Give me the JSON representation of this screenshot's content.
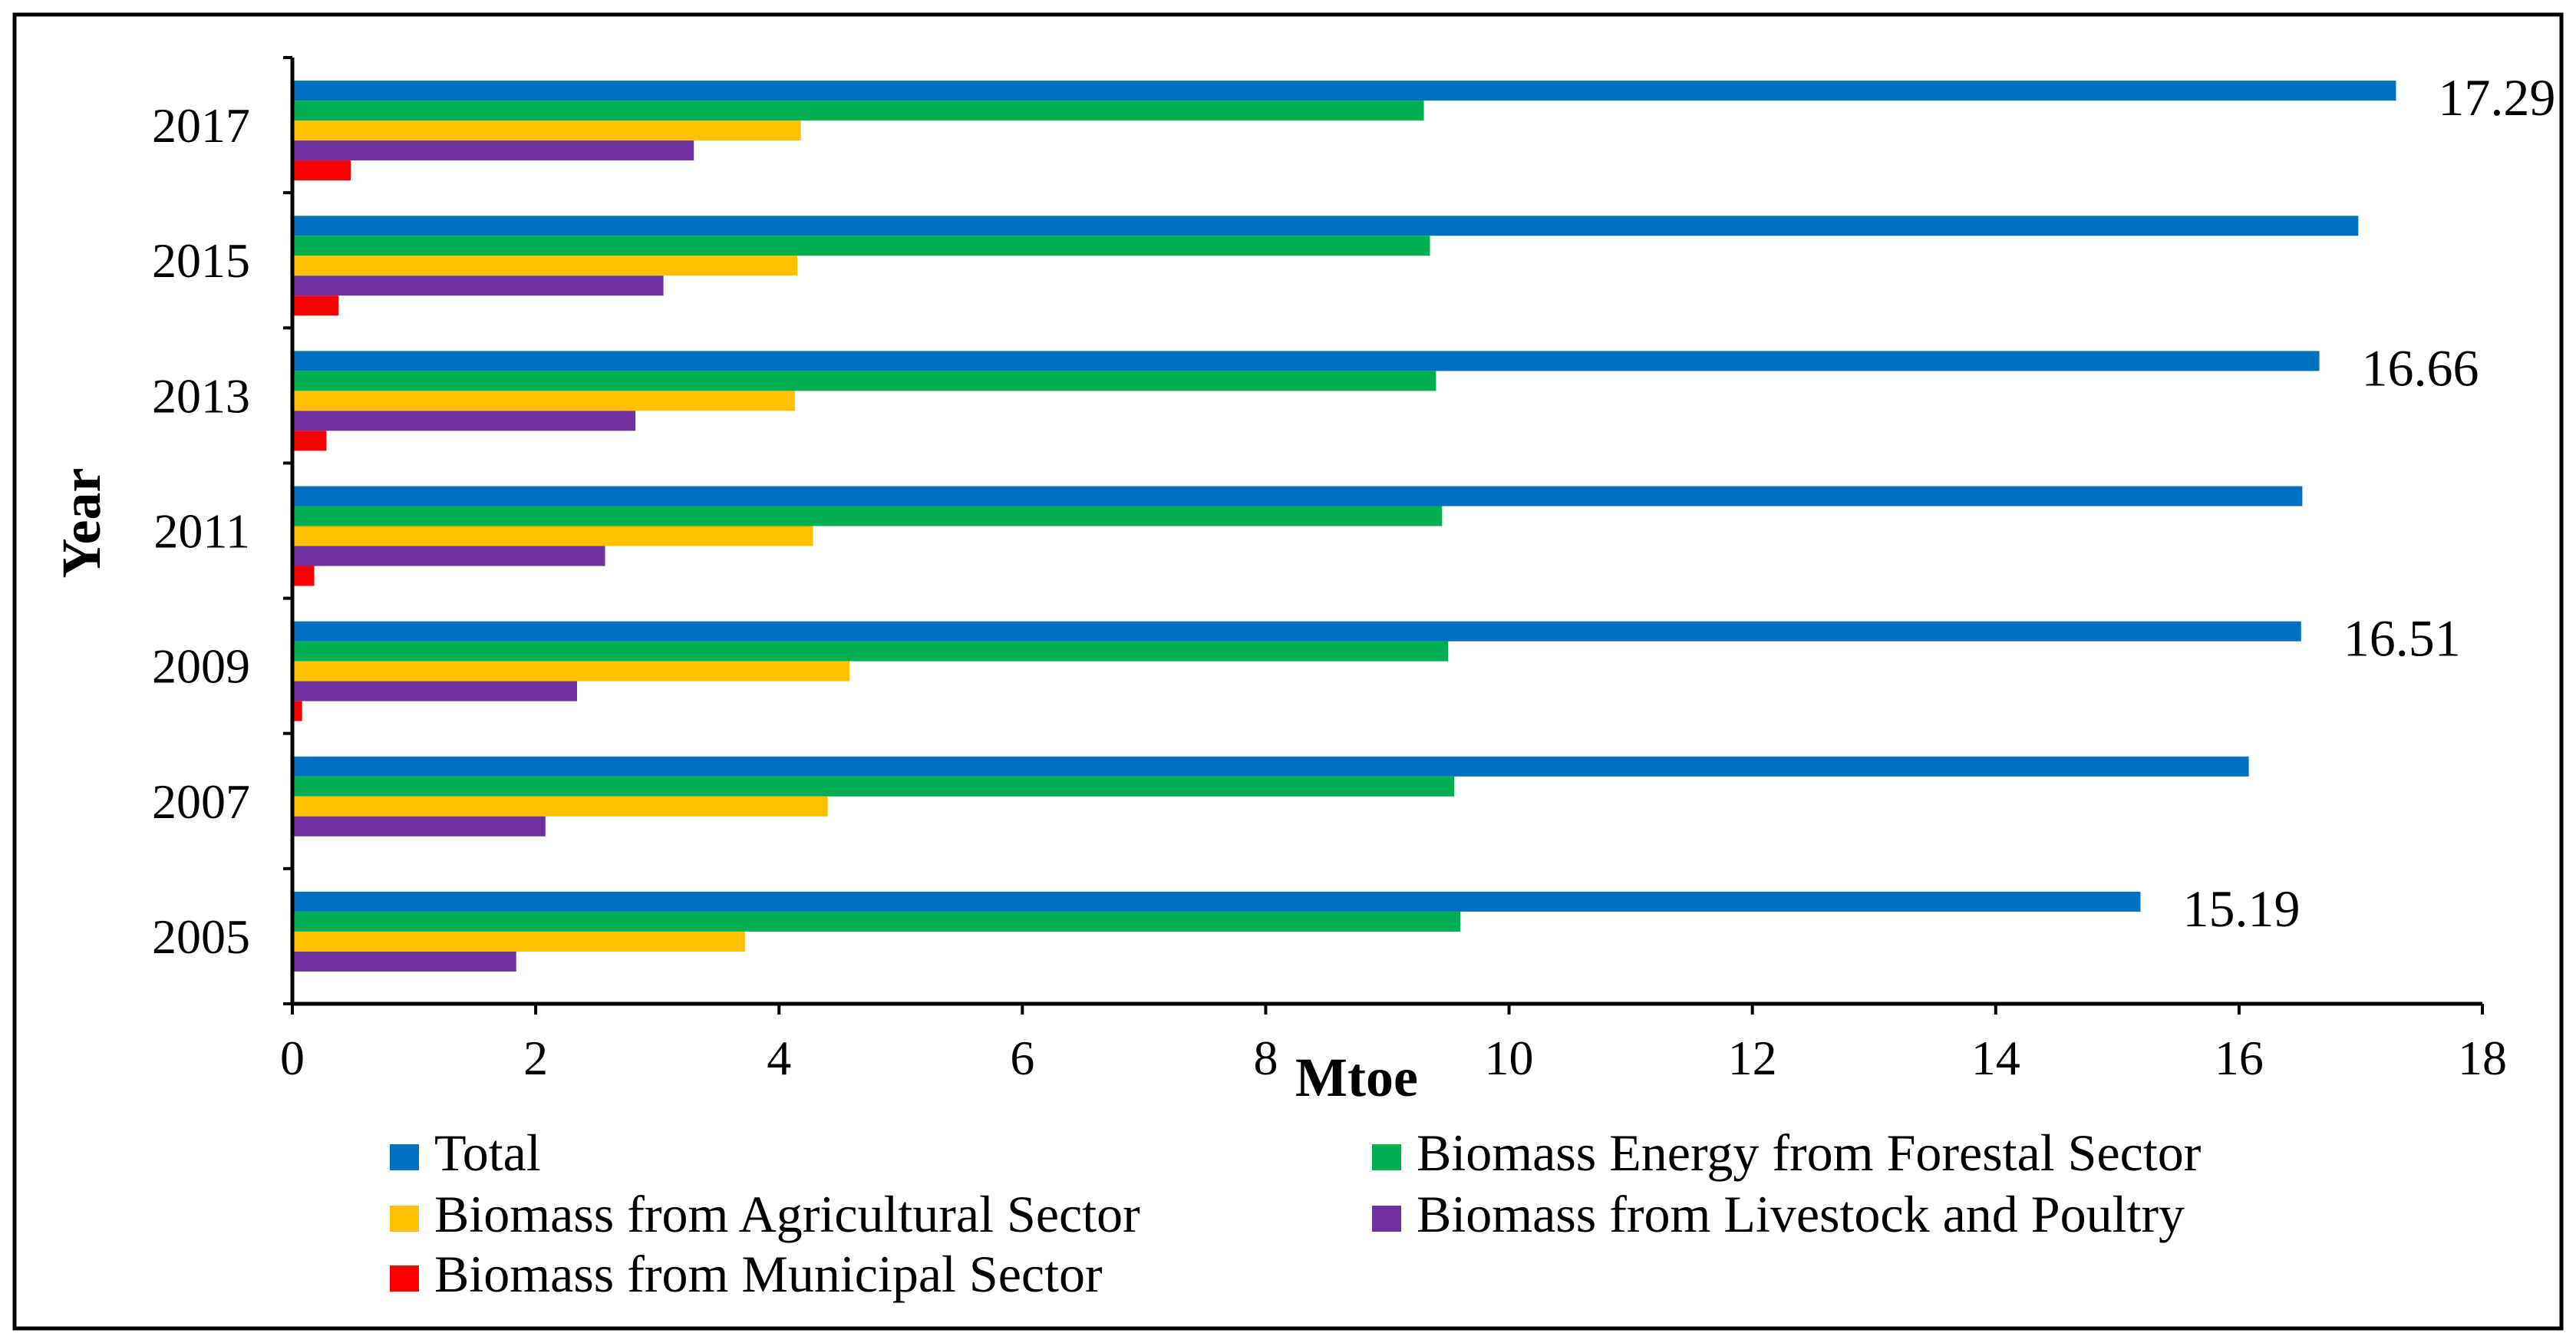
{
  "chart_data": {
    "type": "bar",
    "orientation": "horizontal",
    "title": "",
    "xlabel": "Mtoe",
    "ylabel": "Year",
    "xlim": [
      0,
      18
    ],
    "xticks": [
      0,
      2,
      4,
      6,
      8,
      10,
      12,
      14,
      16,
      18
    ],
    "grid": false,
    "legend_position": "bottom",
    "categories": [
      "2017",
      "2015",
      "2013",
      "2011",
      "2009",
      "2007",
      "2005"
    ],
    "series": [
      {
        "name": "Total",
        "color": "#0070c0",
        "values": [
          17.29,
          16.98,
          16.66,
          16.52,
          16.51,
          16.08,
          15.19
        ]
      },
      {
        "name": "Biomass Energy from Forestal Sector",
        "color": "#00b050",
        "values": [
          9.3,
          9.35,
          9.4,
          9.45,
          9.5,
          9.55,
          9.6
        ]
      },
      {
        "name": "Biomass from Agricultural Sector",
        "color": "#ffc000",
        "values": [
          4.18,
          4.15,
          4.13,
          4.28,
          4.58,
          4.4,
          3.72
        ]
      },
      {
        "name": "Biomass from Livestock and Poultry",
        "color": "#7030a0",
        "values": [
          3.3,
          3.05,
          2.82,
          2.57,
          2.34,
          2.08,
          1.84
        ]
      },
      {
        "name": "Biomass from Municipal Sector",
        "color": "#ff0000",
        "values": [
          0.48,
          0.38,
          0.28,
          0.18,
          0.08,
          0,
          0
        ]
      }
    ],
    "annotations": [
      {
        "text": "17.29",
        "category": "2017",
        "series": "Total"
      },
      {
        "text": "16.66",
        "category": "2013",
        "series": "Total"
      },
      {
        "text": "16.51",
        "category": "2009",
        "series": "Total"
      },
      {
        "text": "15.19",
        "category": "2005",
        "series": "Total"
      }
    ]
  }
}
